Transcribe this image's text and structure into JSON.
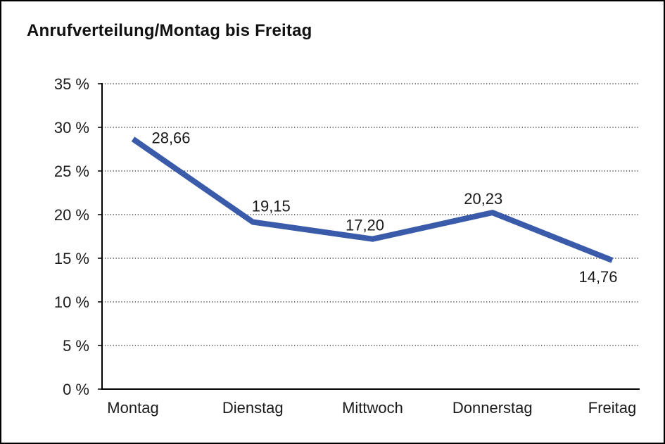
{
  "header": {
    "title": "Anrufverteilung/Montag bis Freitag"
  },
  "chart_data": {
    "type": "line",
    "title": "Anrufverteilung/Montag bis Freitag",
    "categories": [
      "Montag",
      "Dienstag",
      "Mittwoch",
      "Donnerstag",
      "Freitag"
    ],
    "values": [
      28.66,
      19.15,
      17.2,
      20.23,
      14.76
    ],
    "value_labels": [
      "28,66",
      "19,15",
      "17,20",
      "20,23",
      "14,76"
    ],
    "y_tick_labels": [
      "0 %",
      "5 %",
      "10 %",
      "15 %",
      "20 %",
      "25 %",
      "30 %",
      "35 %"
    ],
    "ylim": [
      0,
      35
    ],
    "y_step": 5,
    "xlabel": "",
    "ylabel": "",
    "grid": "horizontal-dotted",
    "legend_position": "none",
    "line_color": "#3A5BA9",
    "axis_color": "#000000",
    "gridline_color": "#4d4d4d",
    "text_color": "#1a1a1a"
  }
}
